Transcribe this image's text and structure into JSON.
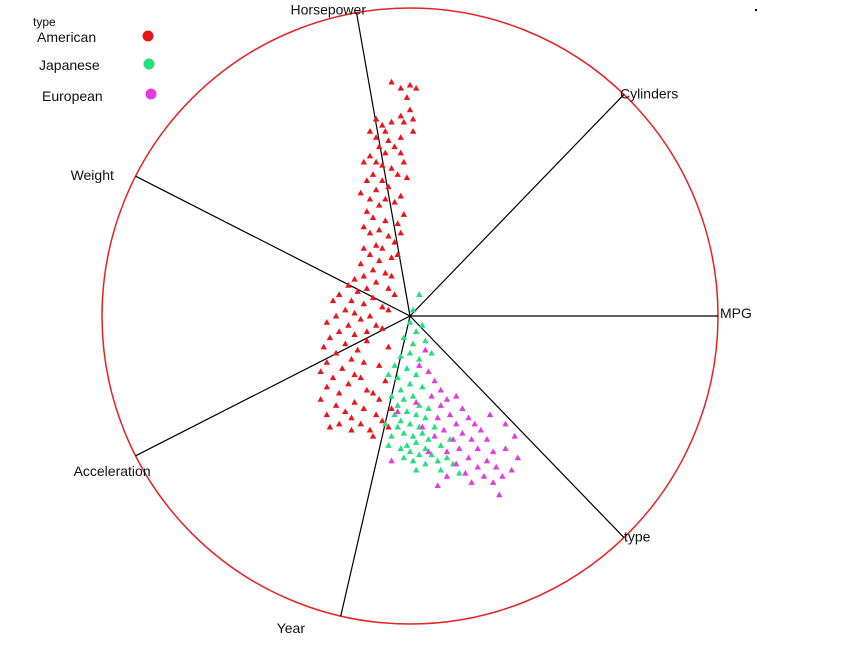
{
  "chart_data": {
    "type": "scatter",
    "title": "",
    "subtitle": "",
    "legend": {
      "title": "type",
      "placement": "top-left",
      "entries": [
        {
          "name": "American",
          "color": "#e8161b"
        },
        {
          "name": "Japanese",
          "color": "#22e07c"
        },
        {
          "name": "European",
          "color": "#e43ae0"
        }
      ]
    },
    "axes": [
      {
        "name": "MPG",
        "angle_deg": 0
      },
      {
        "name": "Cylinders",
        "angle_deg": 46
      },
      {
        "name": "Horsepower",
        "angle_deg": 100
      },
      {
        "name": "Weight",
        "angle_deg": 153
      },
      {
        "name": "Acceleration",
        "angle_deg": 207
      },
      {
        "name": "Year",
        "angle_deg": 257
      },
      {
        "name": "type",
        "angle_deg": 314
      }
    ],
    "ring_color": "#e62222",
    "marker": "triangle",
    "series": [
      {
        "name": "American",
        "points": [
          [
            -0.06,
            0.76
          ],
          [
            -0.03,
            0.74
          ],
          [
            0.0,
            0.75
          ],
          [
            0.02,
            0.74
          ],
          [
            -0.01,
            0.71
          ],
          [
            0.0,
            0.67
          ],
          [
            -0.03,
            0.65
          ],
          [
            0.01,
            0.64
          ],
          [
            -0.02,
            0.63
          ],
          [
            -0.06,
            0.63
          ],
          [
            -0.09,
            0.62
          ],
          [
            -0.11,
            0.64
          ],
          [
            -0.08,
            0.6
          ],
          [
            -0.13,
            0.6
          ],
          [
            -0.11,
            0.58
          ],
          [
            -0.07,
            0.57
          ],
          [
            -0.1,
            0.55
          ],
          [
            -0.05,
            0.55
          ],
          [
            -0.03,
            0.53
          ],
          [
            -0.08,
            0.53
          ],
          [
            -0.13,
            0.52
          ],
          [
            -0.15,
            0.5
          ],
          [
            -0.11,
            0.5
          ],
          [
            -0.09,
            0.49
          ],
          [
            -0.06,
            0.48
          ],
          [
            -0.04,
            0.46
          ],
          [
            -0.12,
            0.46
          ],
          [
            -0.14,
            0.44
          ],
          [
            -0.09,
            0.44
          ],
          [
            -0.07,
            0.42
          ],
          [
            -0.11,
            0.41
          ],
          [
            -0.16,
            0.4
          ],
          [
            -0.13,
            0.38
          ],
          [
            -0.08,
            0.38
          ],
          [
            -0.05,
            0.37
          ],
          [
            -0.1,
            0.36
          ],
          [
            -0.14,
            0.34
          ],
          [
            -0.12,
            0.32
          ],
          [
            -0.08,
            0.31
          ],
          [
            -0.04,
            0.3
          ],
          [
            -0.15,
            0.29
          ],
          [
            -0.1,
            0.28
          ],
          [
            -0.13,
            0.27
          ],
          [
            -0.07,
            0.26
          ],
          [
            -0.05,
            0.24
          ],
          [
            -0.11,
            0.23
          ],
          [
            -0.15,
            0.22
          ],
          [
            -0.09,
            0.22
          ],
          [
            -0.13,
            0.2
          ],
          [
            -0.06,
            0.19
          ],
          [
            -0.1,
            0.18
          ],
          [
            -0.16,
            0.17
          ],
          [
            -0.12,
            0.15
          ],
          [
            -0.08,
            0.14
          ],
          [
            -0.15,
            0.13
          ],
          [
            -0.18,
            0.12
          ],
          [
            -0.11,
            0.11
          ],
          [
            -0.2,
            0.1
          ],
          [
            -0.14,
            0.09
          ],
          [
            -0.07,
            0.09
          ],
          [
            -0.17,
            0.08
          ],
          [
            -0.23,
            0.07
          ],
          [
            -0.12,
            0.06
          ],
          [
            -0.19,
            0.05
          ],
          [
            -0.15,
            0.04
          ],
          [
            -0.25,
            0.05
          ],
          [
            -0.09,
            0.03
          ],
          [
            -0.21,
            0.02
          ],
          [
            -0.18,
            0.01
          ],
          [
            -0.13,
            0.0
          ],
          [
            -0.24,
            0.0
          ],
          [
            -0.16,
            -0.01
          ],
          [
            -0.27,
            -0.02
          ],
          [
            -0.2,
            -0.03
          ],
          [
            -0.11,
            -0.03
          ],
          [
            -0.23,
            -0.05
          ],
          [
            -0.18,
            -0.06
          ],
          [
            -0.26,
            -0.07
          ],
          [
            -0.14,
            -0.08
          ],
          [
            -0.21,
            -0.09
          ],
          [
            -0.28,
            -0.1
          ],
          [
            -0.17,
            -0.11
          ],
          [
            -0.24,
            -0.12
          ],
          [
            -0.19,
            -0.14
          ],
          [
            -0.27,
            -0.15
          ],
          [
            -0.15,
            -0.15
          ],
          [
            -0.22,
            -0.17
          ],
          [
            -0.29,
            -0.18
          ],
          [
            -0.18,
            -0.19
          ],
          [
            -0.25,
            -0.2
          ],
          [
            -0.2,
            -0.22
          ],
          [
            -0.27,
            -0.23
          ],
          [
            -0.14,
            -0.24
          ],
          [
            -0.23,
            -0.25
          ],
          [
            -0.29,
            -0.27
          ],
          [
            -0.18,
            -0.28
          ],
          [
            -0.24,
            -0.29
          ],
          [
            -0.15,
            -0.3
          ],
          [
            -0.21,
            -0.31
          ],
          [
            -0.27,
            -0.32
          ],
          [
            -0.19,
            -0.33
          ],
          [
            -0.11,
            -0.32
          ],
          [
            -0.16,
            -0.35
          ],
          [
            -0.23,
            -0.35
          ],
          [
            -0.09,
            -0.34
          ],
          [
            -0.13,
            -0.37
          ],
          [
            -0.19,
            -0.37
          ],
          [
            -0.26,
            -0.36
          ],
          [
            -0.07,
            -0.36
          ],
          [
            -0.12,
            -0.39
          ],
          [
            -0.03,
            0.58
          ],
          [
            0.01,
            0.6
          ],
          [
            -0.02,
            0.5
          ],
          [
            -0.01,
            0.45
          ],
          [
            -0.03,
            0.39
          ],
          [
            -0.02,
            0.33
          ],
          [
            -0.03,
            0.27
          ],
          [
            -0.04,
            0.2
          ],
          [
            -0.06,
            0.13
          ],
          [
            -0.05,
            0.07
          ],
          [
            -0.07,
            0.02
          ],
          [
            -0.09,
            -0.04
          ],
          [
            -0.07,
            -0.1
          ],
          [
            -0.1,
            -0.16
          ],
          [
            -0.08,
            -0.21
          ],
          [
            -0.1,
            -0.27
          ],
          [
            -0.06,
            -0.3
          ],
          [
            -0.14,
            -0.05
          ],
          [
            -0.16,
            -0.2
          ],
          [
            -0.12,
            -0.25
          ]
        ]
      },
      {
        "name": "Japanese",
        "points": [
          [
            0.03,
            0.07
          ],
          [
            0.01,
            0.02
          ],
          [
            0.0,
            -0.02
          ],
          [
            0.02,
            -0.05
          ],
          [
            0.04,
            -0.03
          ],
          [
            -0.02,
            -0.07
          ],
          [
            0.01,
            -0.09
          ],
          [
            0.05,
            -0.08
          ],
          [
            0.0,
            -0.12
          ],
          [
            -0.03,
            -0.13
          ],
          [
            0.03,
            -0.14
          ],
          [
            0.07,
            -0.12
          ],
          [
            -0.05,
            -0.16
          ],
          [
            -0.01,
            -0.17
          ],
          [
            0.02,
            -0.19
          ],
          [
            -0.04,
            -0.2
          ],
          [
            -0.07,
            -0.19
          ],
          [
            0.0,
            -0.22
          ],
          [
            -0.03,
            -0.24
          ],
          [
            0.04,
            -0.23
          ],
          [
            -0.06,
            -0.26
          ],
          [
            -0.02,
            -0.27
          ],
          [
            0.01,
            -0.26
          ],
          [
            -0.04,
            -0.29
          ],
          [
            0.03,
            -0.29
          ],
          [
            -0.01,
            -0.31
          ],
          [
            -0.05,
            -0.32
          ],
          [
            0.02,
            -0.32
          ],
          [
            -0.03,
            -0.34
          ],
          [
            0.05,
            -0.33
          ],
          [
            0.0,
            -0.35
          ],
          [
            -0.04,
            -0.36
          ],
          [
            0.03,
            -0.36
          ],
          [
            -0.02,
            -0.38
          ],
          [
            0.01,
            -0.39
          ],
          [
            0.04,
            -0.38
          ],
          [
            0.06,
            -0.4
          ],
          [
            0.02,
            -0.41
          ],
          [
            -0.01,
            -0.42
          ],
          [
            0.05,
            -0.43
          ],
          [
            0.0,
            -0.44
          ],
          [
            -0.03,
            -0.43
          ],
          [
            0.03,
            -0.45
          ],
          [
            0.07,
            -0.45
          ],
          [
            0.01,
            -0.47
          ],
          [
            -0.02,
            -0.46
          ],
          [
            0.05,
            -0.48
          ],
          [
            0.09,
            -0.47
          ],
          [
            0.02,
            -0.5
          ],
          [
            0.1,
            -0.5
          ],
          [
            -0.06,
            -0.39
          ],
          [
            -0.08,
            -0.35
          ],
          [
            0.08,
            -0.36
          ],
          [
            0.1,
            -0.42
          ],
          [
            0.12,
            -0.46
          ],
          [
            0.06,
            -0.3
          ],
          [
            -0.07,
            -0.42
          ],
          [
            0.13,
            -0.4
          ],
          [
            0.14,
            -0.48
          ],
          [
            0.16,
            -0.51
          ]
        ]
      },
      {
        "name": "European",
        "points": [
          [
            0.05,
            -0.11
          ],
          [
            0.03,
            -0.16
          ],
          [
            0.06,
            -0.18
          ],
          [
            0.08,
            -0.21
          ],
          [
            0.1,
            -0.24
          ],
          [
            0.07,
            -0.26
          ],
          [
            0.12,
            -0.27
          ],
          [
            0.15,
            -0.26
          ],
          [
            0.1,
            -0.29
          ],
          [
            0.17,
            -0.3
          ],
          [
            0.13,
            -0.32
          ],
          [
            0.19,
            -0.33
          ],
          [
            0.09,
            -0.33
          ],
          [
            0.15,
            -0.35
          ],
          [
            0.21,
            -0.35
          ],
          [
            0.11,
            -0.37
          ],
          [
            0.17,
            -0.38
          ],
          [
            0.23,
            -0.37
          ],
          [
            0.14,
            -0.4
          ],
          [
            0.2,
            -0.4
          ],
          [
            0.25,
            -0.4
          ],
          [
            0.08,
            -0.39
          ],
          [
            0.16,
            -0.43
          ],
          [
            0.22,
            -0.43
          ],
          [
            0.27,
            -0.44
          ],
          [
            0.12,
            -0.44
          ],
          [
            0.19,
            -0.46
          ],
          [
            0.25,
            -0.47
          ],
          [
            0.15,
            -0.48
          ],
          [
            0.22,
            -0.49
          ],
          [
            0.28,
            -0.49
          ],
          [
            0.18,
            -0.51
          ],
          [
            0.24,
            -0.52
          ],
          [
            0.12,
            -0.52
          ],
          [
            0.2,
            -0.54
          ],
          [
            0.27,
            -0.54
          ],
          [
            0.3,
            -0.52
          ],
          [
            0.33,
            -0.5
          ],
          [
            0.29,
            -0.58
          ],
          [
            0.31,
            -0.43
          ],
          [
            0.35,
            -0.46
          ],
          [
            0.06,
            -0.44
          ],
          [
            0.04,
            -0.36
          ],
          [
            0.02,
            -0.28
          ],
          [
            -0.04,
            -0.31
          ],
          [
            -0.06,
            -0.47
          ],
          [
            0.09,
            -0.55
          ],
          [
            0.31,
            -0.35
          ],
          [
            0.34,
            -0.39
          ],
          [
            0.26,
            -0.32
          ]
        ]
      }
    ]
  }
}
